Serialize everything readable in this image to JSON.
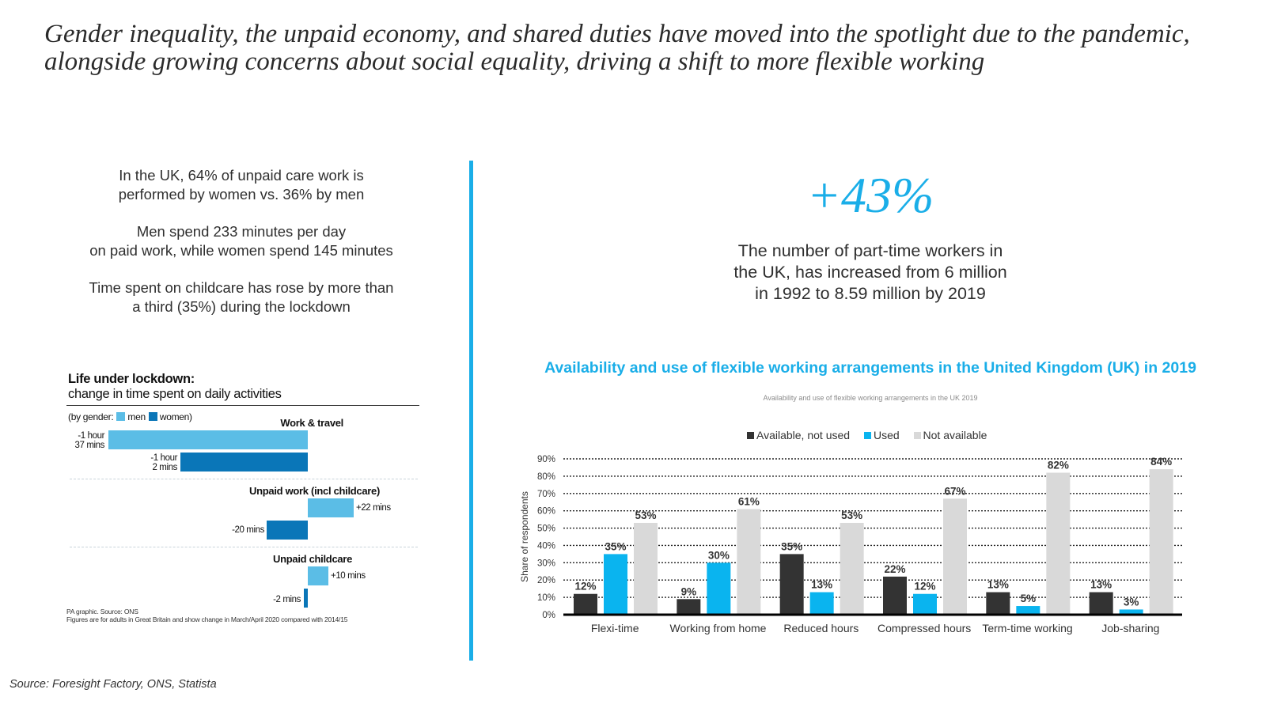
{
  "headline": "Gender inequality, the unpaid economy, and shared duties have moved into the spotlight due to the pandemic, alongside growing concerns about social equality, driving a shift to more flexible working",
  "stats": [
    {
      "line1": "In the UK, 64% of unpaid care work is",
      "line2": "performed by women vs. 36% by men"
    },
    {
      "line1": "Men spend 233 minutes per day",
      "line2": "on paid work, while women spend 145 minutes"
    },
    {
      "line1": "Time spent on childcare has rose by more than",
      "line2": "a third (35%) during the lockdown"
    }
  ],
  "lockdown": {
    "title": "Life under lockdown:",
    "subtitle": "change in time spent on daily activities",
    "legend_prefix": "(by gender:",
    "legend_men": "men",
    "legend_women": "women)",
    "sections": [
      {
        "name": "Work & travel",
        "men_line1": "-1 hour",
        "men_line2": "37 mins",
        "women_line1": "-1 hour",
        "women_line2": "2 mins",
        "men_minutes": -97,
        "women_minutes": -62
      },
      {
        "name": "Unpaid work (incl childcare)",
        "men_label": "+22 mins",
        "women_label": "-20 mins",
        "men_minutes": 22,
        "women_minutes": -20
      },
      {
        "name": "Unpaid childcare",
        "men_label": "+10 mins",
        "women_label": "-2 mins",
        "men_minutes": 10,
        "women_minutes": -2
      }
    ],
    "source_line1": "PA graphic. Source: ONS",
    "source_line2": "Figures are for adults in Great Britain and show change in March/April 2020 compared with 2014/15",
    "colors": {
      "men": "#5bbde6",
      "women": "#0a76b8"
    }
  },
  "big_stat": "+43%",
  "big_desc": {
    "line1": "The number of part-time workers in",
    "line2": "the UK, has increased from 6 million",
    "line3": "in 1992 to 8.59 million by 2019"
  },
  "chart_title": "Availability and use of flexible working arrangements in the United Kingdom (UK) in 2019",
  "chart_subtitle": "Availability and use of flexible working arrangements in the UK 2019",
  "chart_data": {
    "type": "bar",
    "categories": [
      "Flexi-time",
      "Working from home",
      "Reduced hours",
      "Compressed hours",
      "Term-time working",
      "Job-sharing"
    ],
    "series": [
      {
        "name": "Available, not used",
        "color": "#333333",
        "values": [
          12,
          9,
          35,
          22,
          13,
          13
        ]
      },
      {
        "name": "Used",
        "color": "#0ab4ef",
        "values": [
          35,
          30,
          13,
          12,
          5,
          3
        ]
      },
      {
        "name": "Not available",
        "color": "#d9d9d9",
        "values": [
          53,
          61,
          53,
          67,
          82,
          84
        ]
      }
    ],
    "ylabel": "Share of respondents",
    "ylim": [
      0,
      90
    ],
    "yticks": [
      "0%",
      "10%",
      "20%",
      "30%",
      "40%",
      "50%",
      "60%",
      "70%",
      "80%",
      "90%"
    ],
    "grid": true,
    "legend": "top"
  },
  "source": "Source: Foresight Factory, ONS, Statista"
}
